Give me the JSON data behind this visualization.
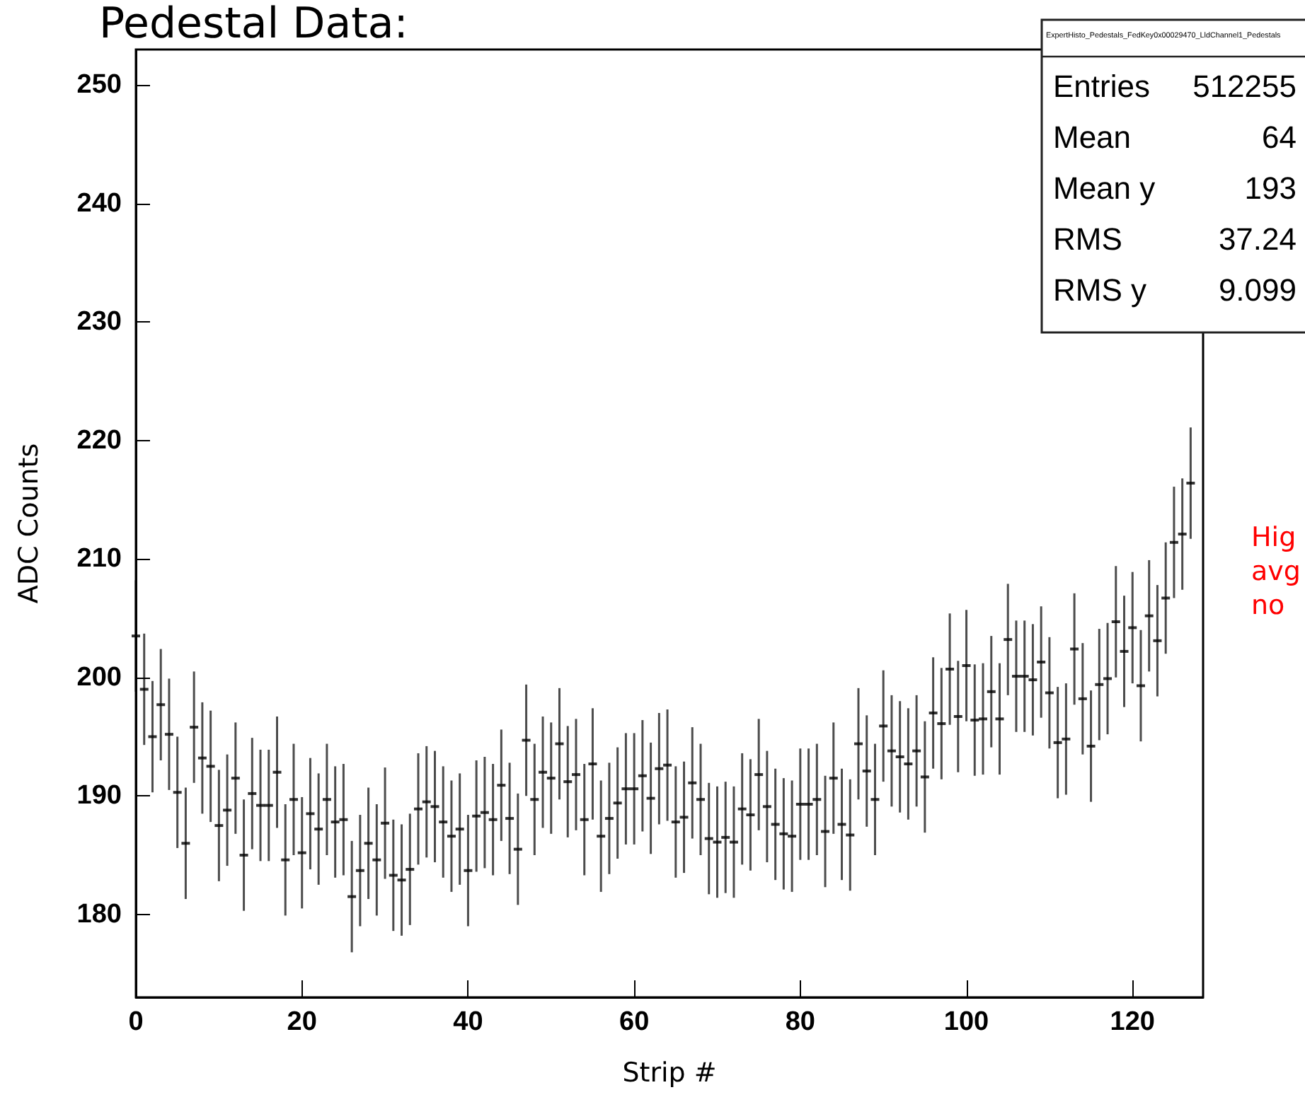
{
  "chart_data": {
    "type": "scatter",
    "title": "Pedestal Data:",
    "xlabel": "Strip #",
    "ylabel": "ADC Counts",
    "x": [
      0,
      1,
      2,
      3,
      4,
      5,
      6,
      7,
      8,
      9,
      10,
      11,
      12,
      13,
      14,
      15,
      16,
      17,
      18,
      19,
      20,
      21,
      22,
      23,
      24,
      25,
      26,
      27,
      28,
      29,
      30,
      31,
      32,
      33,
      34,
      35,
      36,
      37,
      38,
      39,
      40,
      41,
      42,
      43,
      44,
      45,
      46,
      47,
      48,
      49,
      50,
      51,
      52,
      53,
      54,
      55,
      56,
      57,
      58,
      59,
      60,
      61,
      62,
      63,
      64,
      65,
      66,
      67,
      68,
      69,
      70,
      71,
      72,
      73,
      74,
      75,
      76,
      77,
      78,
      79,
      80,
      81,
      82,
      83,
      84,
      85,
      86,
      87,
      88,
      89,
      90,
      91,
      92,
      93,
      94,
      95,
      96,
      97,
      98,
      99,
      100,
      101,
      102,
      103,
      104,
      105,
      106,
      107,
      108,
      109,
      110,
      111,
      112,
      113,
      114,
      115,
      116,
      117,
      118,
      119,
      120,
      121,
      122,
      123,
      124,
      125,
      126,
      127
    ],
    "series": [
      {
        "color": "#000000",
        "values": [
          203.5,
          199,
          195,
          197.7,
          195.2,
          190.3,
          186,
          195.8,
          193.2,
          192.5,
          187.5,
          188.8,
          191.5,
          185,
          190.2,
          189.2,
          189.2,
          192,
          184.6,
          189.7,
          185.2,
          188.5,
          187.2,
          189.7,
          187.8,
          188,
          181.5,
          183.7,
          186,
          184.6,
          187.7,
          183.3,
          182.9,
          183.8,
          188.9,
          189.5,
          189.1,
          187.8,
          186.6,
          187.2,
          183.7,
          188.3,
          188.6,
          188,
          190.9,
          188.1,
          185.5,
          194.7,
          189.7,
          192,
          191.5,
          194.4,
          191.2,
          191.8,
          188,
          192.7,
          186.6,
          188.1,
          189.4,
          190.6,
          190.6,
          191.7,
          189.8,
          192.3,
          192.6,
          187.8,
          188.2,
          191.1,
          189.7,
          186.4,
          186.1,
          186.5,
          186.1,
          188.9,
          188.4,
          191.8,
          189.1,
          187.6,
          186.8,
          186.6,
          189.3,
          189.3,
          189.7,
          187,
          191.5,
          187.6,
          186.7,
          194.4,
          192.1,
          189.7,
          195.9,
          193.8,
          193.3,
          192.7,
          193.8,
          191.6,
          197,
          196.1,
          200.7,
          196.7,
          201,
          196.4,
          196.5,
          198.8,
          196.5,
          203.2,
          200.1,
          200.1,
          199.8,
          201.3,
          198.7,
          194.5,
          194.8,
          202.4,
          198.2,
          194.2,
          199.4,
          199.9,
          204.7,
          202.2,
          204.2,
          199.3,
          205.2,
          203.1,
          206.7,
          211.4,
          212.1,
          216.4
        ],
        "errors": [
          4.7,
          4.7,
          4.7,
          4.7,
          4.7,
          4.7,
          4.7,
          4.7,
          4.7,
          4.7,
          4.7,
          4.7,
          4.7,
          4.7,
          4.7,
          4.7,
          4.7,
          4.7,
          4.7,
          4.7,
          4.7,
          4.7,
          4.7,
          4.7,
          4.7,
          4.7,
          4.7,
          4.7,
          4.7,
          4.7,
          4.7,
          4.7,
          4.7,
          4.7,
          4.7,
          4.7,
          4.7,
          4.7,
          4.7,
          4.7,
          4.7,
          4.7,
          4.7,
          4.7,
          4.7,
          4.7,
          4.7,
          4.7,
          4.7,
          4.7,
          4.7,
          4.7,
          4.7,
          4.7,
          4.7,
          4.7,
          4.7,
          4.7,
          4.7,
          4.7,
          4.7,
          4.7,
          4.7,
          4.7,
          4.7,
          4.7,
          4.7,
          4.7,
          4.7,
          4.7,
          4.7,
          4.7,
          4.7,
          4.7,
          4.7,
          4.7,
          4.7,
          4.7,
          4.7,
          4.7,
          4.7,
          4.7,
          4.7,
          4.7,
          4.7,
          4.7,
          4.7,
          4.7,
          4.7,
          4.7,
          4.7,
          4.7,
          4.7,
          4.7,
          4.7,
          4.7,
          4.7,
          4.7,
          4.7,
          4.7,
          4.7,
          4.7,
          4.7,
          4.7,
          4.7,
          4.7,
          4.7,
          4.7,
          4.7,
          4.7,
          4.7,
          4.7,
          4.7,
          4.7,
          4.7,
          4.7,
          4.7,
          4.7,
          4.7,
          4.7,
          4.7,
          4.7,
          4.7,
          4.7,
          4.7,
          4.7,
          4.7,
          4.7
        ]
      }
    ],
    "xlim": [
      0,
      128.5
    ],
    "xticks": [
      0,
      20,
      40,
      60,
      80,
      100,
      120
    ],
    "ylim": [
      173,
      253
    ],
    "yticks": [
      180,
      190,
      200,
      210,
      220,
      230,
      240,
      250
    ],
    "grid": false,
    "annotations": [
      "ExpertHisto_Pedestals_FedKey0x00029470_LldChannel1_Pedestals",
      "Entries 512255",
      "Mean 64",
      "Mean y 193",
      "RMS 37.24",
      "RMS y 9.099",
      "Hig\navg\nno"
    ]
  }
}
